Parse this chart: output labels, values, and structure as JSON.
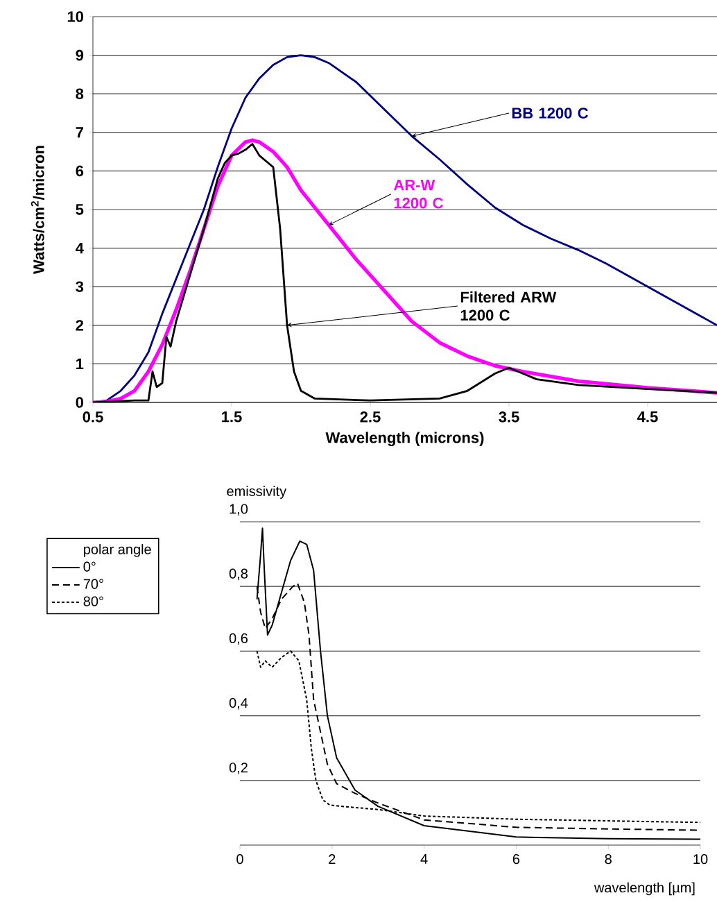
{
  "chart_data": [
    {
      "type": "line",
      "xlabel": "Wavelength (microns)",
      "ylabel": "Watts/cm$^{2}$/micron",
      "xlim": [
        0.5,
        5
      ],
      "ylim": [
        0,
        10
      ],
      "xticks": [
        0.5,
        1.5,
        2.5,
        3.5,
        4.5
      ],
      "yticks": [
        0,
        1,
        2,
        3,
        4,
        5,
        6,
        7,
        8,
        9,
        10
      ],
      "grid": "y",
      "legend": false,
      "series": [
        {
          "name": "BB 1200 C",
          "color": "#00007f",
          "x": [
            0.5,
            0.6,
            0.7,
            0.8,
            0.9,
            1.0,
            1.1,
            1.2,
            1.3,
            1.4,
            1.5,
            1.6,
            1.7,
            1.8,
            1.9,
            2.0,
            2.1,
            2.2,
            2.4,
            2.6,
            2.8,
            3.0,
            3.2,
            3.4,
            3.6,
            3.8,
            4.0,
            4.2,
            4.4,
            4.6,
            4.8,
            5.0
          ],
          "values": [
            0,
            0.05,
            0.3,
            0.7,
            1.3,
            2.3,
            3.2,
            4.1,
            5.0,
            6.1,
            7.1,
            7.9,
            8.4,
            8.75,
            8.95,
            9.0,
            8.95,
            8.8,
            8.3,
            7.6,
            6.9,
            6.3,
            5.65,
            5.05,
            4.6,
            4.25,
            3.95,
            3.6,
            3.2,
            2.8,
            2.4,
            2.0
          ]
        },
        {
          "name": "AR-W 1200 C",
          "color": "#ff00ff",
          "x": [
            0.5,
            0.6,
            0.7,
            0.8,
            0.9,
            1.0,
            1.1,
            1.2,
            1.3,
            1.4,
            1.5,
            1.6,
            1.65,
            1.7,
            1.8,
            1.9,
            2.0,
            2.2,
            2.4,
            2.6,
            2.8,
            3.0,
            3.2,
            3.4,
            3.6,
            4.0,
            4.5,
            5.0
          ],
          "values": [
            0,
            0.02,
            0.1,
            0.3,
            0.8,
            1.5,
            2.4,
            3.4,
            4.5,
            5.6,
            6.4,
            6.75,
            6.8,
            6.75,
            6.5,
            6.1,
            5.5,
            4.6,
            3.7,
            2.9,
            2.1,
            1.55,
            1.2,
            0.95,
            0.8,
            0.55,
            0.38,
            0.25
          ]
        },
        {
          "name": "Filtered ARW 1200 C",
          "color": "#000000",
          "x": [
            0.5,
            0.8,
            0.9,
            0.93,
            0.96,
            1.0,
            1.03,
            1.06,
            1.1,
            1.2,
            1.3,
            1.4,
            1.45,
            1.5,
            1.55,
            1.6,
            1.65,
            1.7,
            1.75,
            1.8,
            1.85,
            1.9,
            1.95,
            2.0,
            2.1,
            2.5,
            3.0,
            3.2,
            3.4,
            3.5,
            3.7,
            4.0,
            4.5,
            5.0
          ],
          "values": [
            0,
            0.05,
            0.05,
            0.8,
            0.4,
            0.5,
            1.7,
            1.45,
            2.1,
            3.3,
            4.5,
            5.8,
            6.2,
            6.4,
            6.45,
            6.55,
            6.7,
            6.4,
            6.25,
            6.1,
            4.5,
            2.0,
            0.8,
            0.3,
            0.1,
            0.05,
            0.1,
            0.3,
            0.75,
            0.9,
            0.6,
            0.45,
            0.35,
            0.25
          ]
        }
      ]
    },
    {
      "type": "line",
      "xlabel": "wavelength [µm]",
      "ylabel": "emissivity",
      "legend_title": "polar angle",
      "xlim": [
        0,
        10
      ],
      "ylim": [
        0,
        1.0
      ],
      "xticks": [
        0,
        2,
        4,
        6,
        8,
        10
      ],
      "yticks": [
        {
          "value": 0.2,
          "label": "0,2"
        },
        {
          "value": 0.4,
          "label": "0,4"
        },
        {
          "value": 0.6,
          "label": "0,6"
        },
        {
          "value": 0.8,
          "label": "0,8"
        },
        {
          "value": 1.0,
          "label": "1,0"
        }
      ],
      "grid": "y",
      "legend": "left",
      "series": [
        {
          "name": "0°",
          "color": "#000000",
          "line_style": "solid",
          "x": [
            0.37,
            0.45,
            0.49,
            0.53,
            0.6,
            0.7,
            0.9,
            1.1,
            1.3,
            1.45,
            1.6,
            1.75,
            1.9,
            2.1,
            2.5,
            3.0,
            4.0,
            6.0,
            8.0,
            10.0
          ],
          "values": [
            0.76,
            0.9,
            0.98,
            0.85,
            0.65,
            0.68,
            0.78,
            0.88,
            0.94,
            0.93,
            0.85,
            0.6,
            0.4,
            0.27,
            0.17,
            0.12,
            0.06,
            0.025,
            0.02,
            0.018
          ]
        },
        {
          "name": "70°",
          "color": "#000000",
          "line_style": "dashed",
          "x": [
            0.37,
            0.45,
            0.55,
            0.7,
            0.9,
            1.15,
            1.25,
            1.4,
            1.5,
            1.6,
            1.75,
            1.9,
            2.1,
            2.5,
            3.0,
            4.0,
            6.0,
            8.0,
            10.0
          ],
          "values": [
            0.8,
            0.72,
            0.67,
            0.7,
            0.76,
            0.8,
            0.81,
            0.75,
            0.65,
            0.45,
            0.35,
            0.25,
            0.19,
            0.16,
            0.13,
            0.078,
            0.055,
            0.05,
            0.046
          ]
        },
        {
          "name": "80°",
          "color": "#000000",
          "line_style": "dotted",
          "x": [
            0.37,
            0.45,
            0.55,
            0.7,
            0.9,
            1.1,
            1.28,
            1.45,
            1.55,
            1.65,
            1.8,
            1.95,
            2.2,
            3.0,
            4.0,
            6.0,
            8.0,
            10.0
          ],
          "values": [
            0.6,
            0.55,
            0.57,
            0.55,
            0.58,
            0.6,
            0.57,
            0.45,
            0.3,
            0.2,
            0.14,
            0.124,
            0.12,
            0.11,
            0.09,
            0.08,
            0.075,
            0.07
          ]
        }
      ]
    }
  ]
}
